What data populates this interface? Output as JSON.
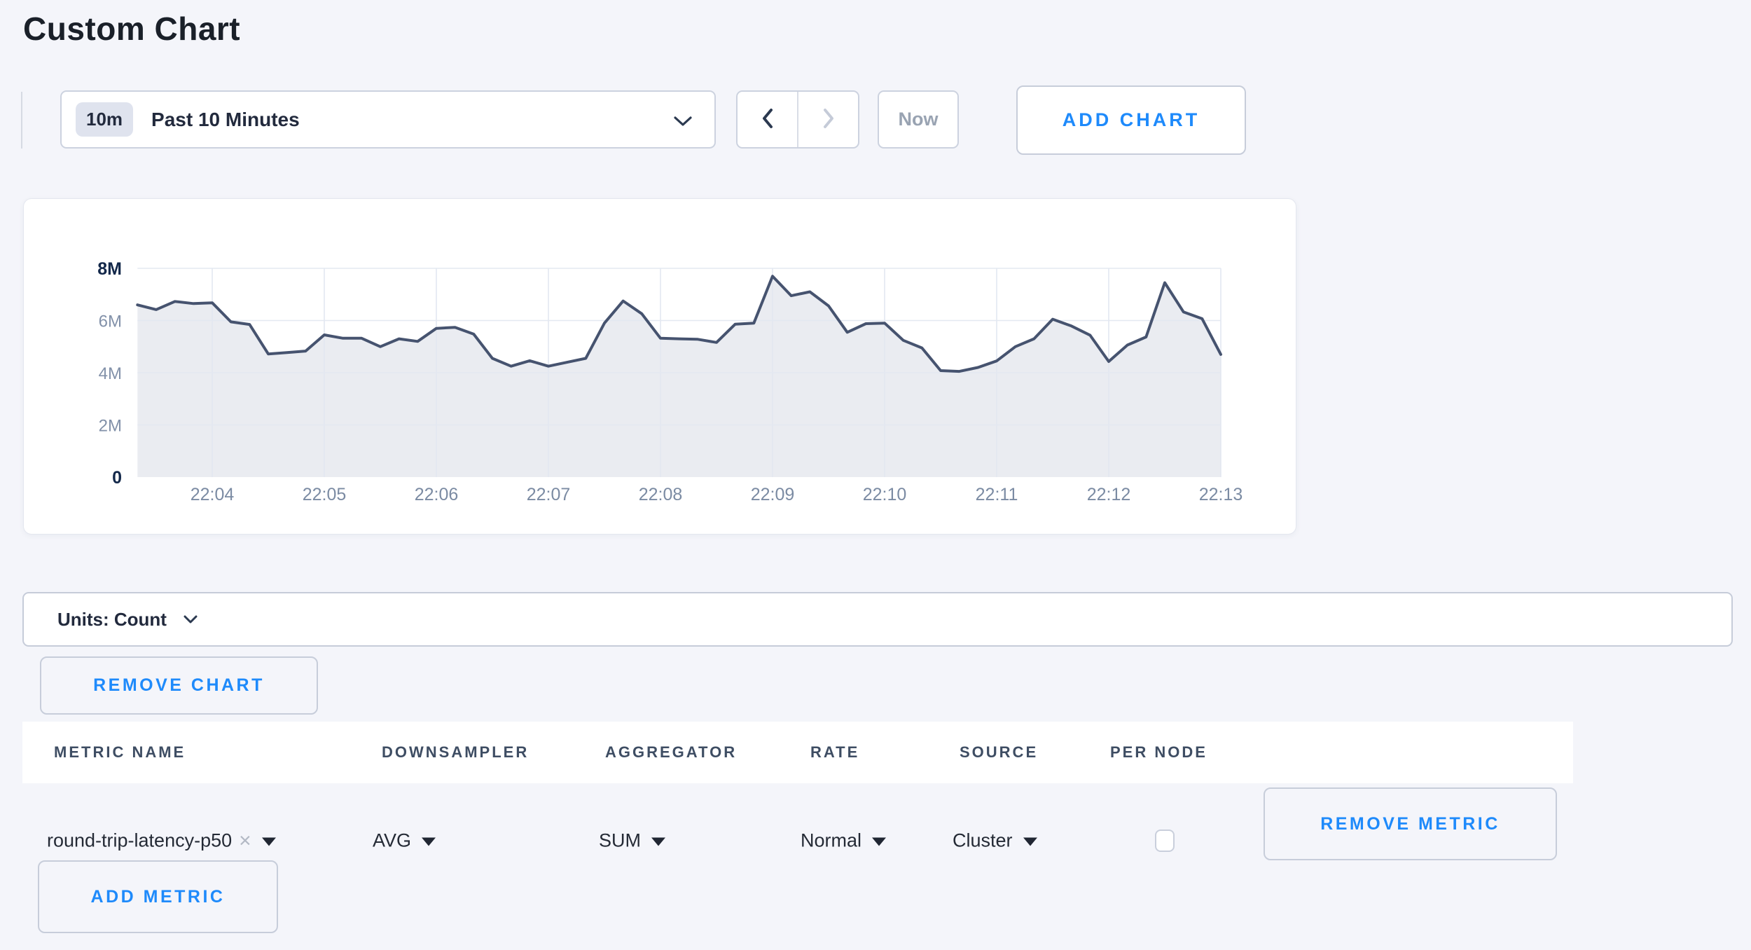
{
  "page": {
    "title": "Custom Chart",
    "background_color": "#f4f5fa",
    "accent_blue": "#1e8afb"
  },
  "toolbar": {
    "range_badge": "10m",
    "range_label": "Past 10 Minutes",
    "now_label": "Now",
    "add_chart_label": "ADD CHART",
    "icons": [
      "chevron-down-icon",
      "chevron-left-icon",
      "chevron-right-icon"
    ]
  },
  "chart_data": {
    "type": "area",
    "title": "",
    "unit": "Count",
    "x_tick_labels": [
      "22:04",
      "22:05",
      "22:06",
      "22:07",
      "22:08",
      "22:09",
      "22:10",
      "22:11",
      "22:12",
      "22:13"
    ],
    "y_ticks": [
      {
        "value": 0,
        "label": "0",
        "strong": true
      },
      {
        "value": 2,
        "label": "2M",
        "strong": false
      },
      {
        "value": 4,
        "label": "4M",
        "strong": false
      },
      {
        "value": 6,
        "label": "6M",
        "strong": false
      },
      {
        "value": 8,
        "label": "8M",
        "strong": true
      }
    ],
    "ylim_millions": [
      0,
      8
    ],
    "grid": true,
    "legend": false,
    "series_name": "round-trip-latency-p50",
    "start_time": "22:03:20",
    "start_offset_seconds": -40,
    "interval_seconds": 10,
    "values_millions": [
      6.6,
      6.42,
      6.73,
      6.65,
      6.68,
      5.95,
      5.85,
      4.72,
      4.77,
      4.83,
      5.45,
      5.32,
      5.32,
      5.0,
      5.3,
      5.2,
      5.7,
      5.74,
      5.48,
      4.55,
      4.25,
      4.46,
      4.25,
      4.4,
      4.55,
      5.9,
      6.75,
      6.26,
      5.32,
      5.3,
      5.28,
      5.16,
      5.86,
      5.9,
      7.7,
      6.95,
      7.1,
      6.56,
      5.55,
      5.88,
      5.9,
      5.24,
      4.95,
      4.08,
      4.05,
      4.2,
      4.45,
      5.0,
      5.3,
      6.05,
      5.79,
      5.44,
      4.43,
      5.06,
      5.37,
      7.45,
      6.33,
      6.07,
      4.7
    ],
    "line_color": "#46536f",
    "fill_color": "#eaecf1",
    "grid_color": "#e3e8f1"
  },
  "units_bar": {
    "label": "Units: Count"
  },
  "chart_actions": {
    "remove_chart_label": "REMOVE CHART"
  },
  "metrics_table": {
    "headers": [
      "METRIC NAME",
      "DOWNSAMPLER",
      "AGGREGATOR",
      "RATE",
      "SOURCE",
      "PER NODE"
    ],
    "rows": [
      {
        "metric_name": "round-trip-latency-p50",
        "downsampler": "AVG",
        "aggregator": "SUM",
        "rate": "Normal",
        "source": "Cluster",
        "per_node_checked": false,
        "remove_label": "REMOVE METRIC"
      }
    ],
    "add_metric_label": "ADD METRIC"
  },
  "icons": {
    "remove_tag": "×"
  }
}
